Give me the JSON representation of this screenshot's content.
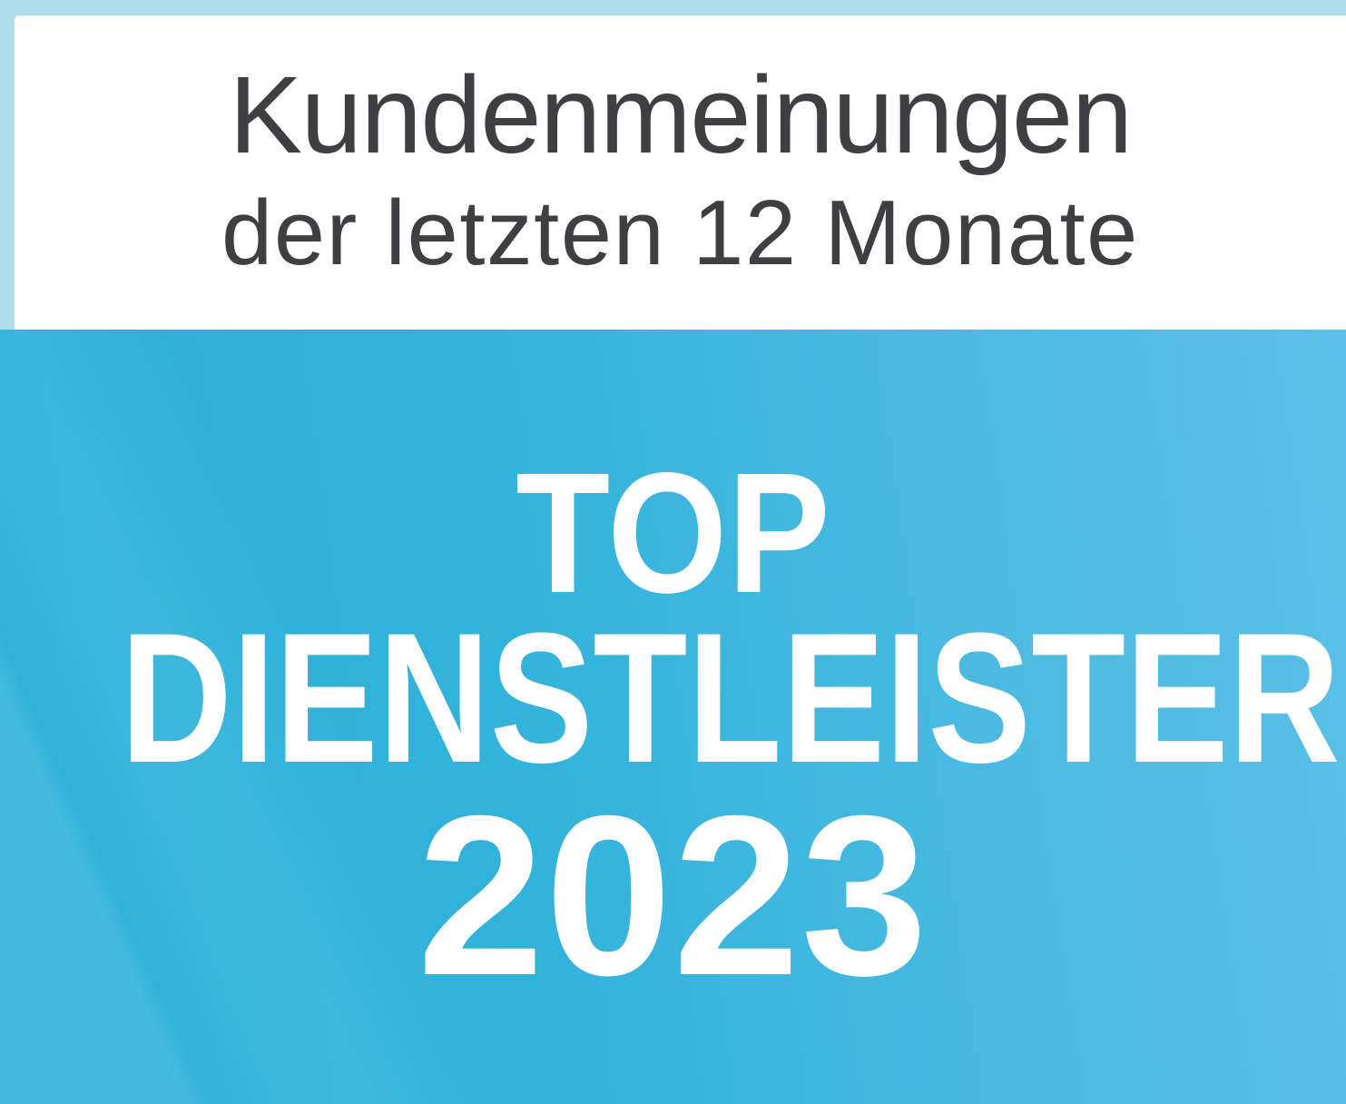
{
  "badge": {
    "type": "award-seal",
    "header": {
      "line1": "Kundenmeinungen",
      "line2": "der letzten 12 Monate"
    },
    "award": {
      "line1": "TOP",
      "line2": "DIENSTLEISTER",
      "year": "2023"
    },
    "colors": {
      "frame": "#aedde9",
      "panel": "#ffffff",
      "header_text": "#3f3f42",
      "award_text": "#ffffff",
      "blue_1": "#27afd8",
      "blue_2": "#33b3db",
      "blue_3": "#4dbbe2",
      "blue_4": "#5ac0e7"
    }
  }
}
